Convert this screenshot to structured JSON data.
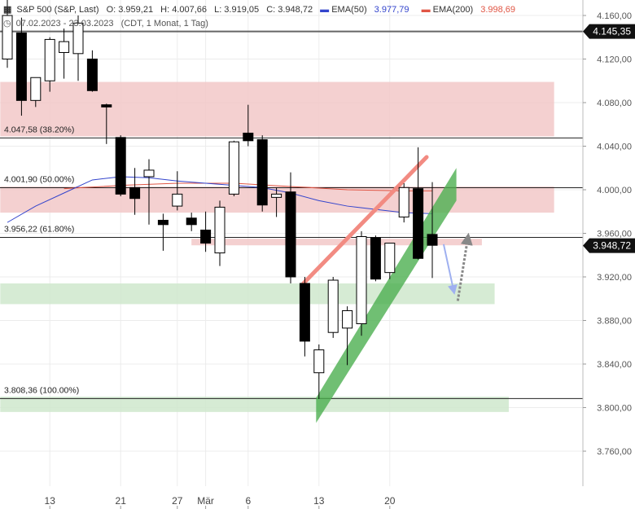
{
  "header": {
    "symbol": "S&P 500 (S&P, Last)",
    "open": "O: 3.959,21",
    "high": "H: 4.007,66",
    "low": "L: 3.919,05",
    "close": "C: 3.948,72",
    "ema50_label": "EMA(50)",
    "ema50_value": "3.977,79",
    "ema200_label": "EMA(200)",
    "ema200_value": "3.998,69",
    "date_range": "07.02.2023 - 23.03.2023",
    "settings": "(CDT, 1 Monat, 1 Tag)"
  },
  "colors": {
    "ema50": "#3344cc",
    "ema200": "#e05544",
    "resistance_zone": "#f2c8c8",
    "support_zone": "#cfe8cc",
    "channel": "#4caf50",
    "trend_up": "#f28b82"
  },
  "chart_data": {
    "type": "candlestick",
    "y_range": [
      3720,
      4180
    ],
    "y_ticks": [
      {
        "v": 4160,
        "label": "4.160,00"
      },
      {
        "v": 4120,
        "label": "4.120,00"
      },
      {
        "v": 4080,
        "label": "4.080,00"
      },
      {
        "v": 4040,
        "label": "4.040,00"
      },
      {
        "v": 4000,
        "label": "4.000,00"
      },
      {
        "v": 3960,
        "label": "3.960,00"
      },
      {
        "v": 3920,
        "label": "3.920,00"
      },
      {
        "v": 3880,
        "label": "3.880,00"
      },
      {
        "v": 3840,
        "label": "3.840,00"
      },
      {
        "v": 3800,
        "label": "3.800,00"
      },
      {
        "v": 3760,
        "label": "3.760,00"
      }
    ],
    "x_labels": [
      {
        "i": 3,
        "label": "13"
      },
      {
        "i": 8,
        "label": "21"
      },
      {
        "i": 12,
        "label": "27"
      },
      {
        "i": 14,
        "label": "Mär"
      },
      {
        "i": 17,
        "label": "6"
      },
      {
        "i": 22,
        "label": "13"
      },
      {
        "i": 27,
        "label": "20"
      }
    ],
    "candles": [
      {
        "o": 4120,
        "h": 4178,
        "l": 4112,
        "c": 4160
      },
      {
        "o": 4144,
        "h": 4158,
        "l": 4068,
        "c": 4082
      },
      {
        "o": 4082,
        "h": 4102,
        "l": 4076,
        "c": 4103
      },
      {
        "o": 4100,
        "h": 4140,
        "l": 4090,
        "c": 4138
      },
      {
        "o": 4126,
        "h": 4148,
        "l": 4102,
        "c": 4136
      },
      {
        "o": 4125,
        "h": 4160,
        "l": 4100,
        "c": 4153
      },
      {
        "o": 4120,
        "h": 4128,
        "l": 4090,
        "c": 4091
      },
      {
        "o": 4078,
        "h": 4079,
        "l": 4042,
        "c": 4076
      },
      {
        "o": 4048,
        "h": 4050,
        "l": 3994,
        "c": 3996
      },
      {
        "o": 4002,
        "h": 4020,
        "l": 3977,
        "c": 3992
      },
      {
        "o": 4012,
        "h": 4028,
        "l": 3968,
        "c": 4018
      },
      {
        "o": 3972,
        "h": 3978,
        "l": 3944,
        "c": 3968
      },
      {
        "o": 3985,
        "h": 4017,
        "l": 3981,
        "c": 3996
      },
      {
        "o": 3974,
        "h": 3979,
        "l": 3962,
        "c": 3968
      },
      {
        "o": 3963,
        "h": 3980,
        "l": 3943,
        "c": 3951
      },
      {
        "o": 3942,
        "h": 3990,
        "l": 3930,
        "c": 3984
      },
      {
        "o": 3996,
        "h": 4045,
        "l": 3994,
        "c": 4044
      },
      {
        "o": 4052,
        "h": 4078,
        "l": 4040,
        "c": 4045
      },
      {
        "o": 4046,
        "h": 4050,
        "l": 3980,
        "c": 3986
      },
      {
        "o": 3993,
        "h": 4002,
        "l": 3975,
        "c": 3996
      },
      {
        "o": 3998,
        "h": 4016,
        "l": 3914,
        "c": 3920
      },
      {
        "o": 3914,
        "h": 3920,
        "l": 3847,
        "c": 3861
      },
      {
        "o": 3832,
        "h": 3858,
        "l": 3808,
        "c": 3853
      },
      {
        "o": 3869,
        "h": 3920,
        "l": 3864,
        "c": 3917
      },
      {
        "o": 3873,
        "h": 3893,
        "l": 3839,
        "c": 3889
      },
      {
        "o": 3877,
        "h": 3962,
        "l": 3866,
        "c": 3957
      },
      {
        "o": 3956,
        "h": 3958,
        "l": 3916,
        "c": 3918
      },
      {
        "o": 3924,
        "h": 3948,
        "l": 3918,
        "c": 3951
      },
      {
        "o": 3975,
        "h": 4006,
        "l": 3970,
        "c": 4002
      },
      {
        "o": 4001,
        "h": 4039,
        "l": 3936,
        "c": 3937
      },
      {
        "o": 3959,
        "h": 4007,
        "l": 3919,
        "c": 3949
      }
    ],
    "ema50": [
      [
        0,
        3970
      ],
      [
        2,
        3985
      ],
      [
        4,
        3997
      ],
      [
        6,
        4009
      ],
      [
        8,
        4012
      ],
      [
        10,
        4011
      ],
      [
        12,
        4008
      ],
      [
        14,
        4006
      ],
      [
        16,
        4004
      ],
      [
        18,
        4002
      ],
      [
        20,
        3997
      ],
      [
        22,
        3990
      ],
      [
        24,
        3985
      ],
      [
        26,
        3982
      ],
      [
        28,
        3979
      ],
      [
        30,
        3978
      ]
    ],
    "ema200": [
      [
        4,
        4001
      ],
      [
        8,
        4004
      ],
      [
        12,
        4006
      ],
      [
        16,
        4006
      ],
      [
        20,
        4003
      ],
      [
        24,
        4000
      ],
      [
        28,
        3999
      ],
      [
        30,
        3999
      ]
    ],
    "fibonacci": [
      {
        "v": 4047.58,
        "label": "4.047,58 (38.20%)"
      },
      {
        "v": 4001.9,
        "label": "4.001,90 (50.00%)"
      },
      {
        "v": 3956.22,
        "label": "3.956,22 (61.80%)"
      },
      {
        "v": 3808.36,
        "label": "3.808,36 (100.00%)"
      }
    ],
    "reference_line": {
      "v": 4145.35,
      "label": "4.145,35"
    },
    "last_price": {
      "v": 3948.72,
      "label": "3.948,72"
    },
    "zones": [
      {
        "kind": "resistance",
        "from_i": -0.5,
        "to_i": 38.6,
        "top": 4099,
        "bottom": 4049
      },
      {
        "kind": "resistance",
        "from_i": -0.5,
        "to_i": 38.6,
        "top": 4003,
        "bottom": 3979
      },
      {
        "kind": "resistance",
        "from_i": 13.0,
        "to_i": 33.5,
        "top": 3955,
        "bottom": 3949
      },
      {
        "kind": "support",
        "from_i": -0.5,
        "to_i": 34.4,
        "top": 3914,
        "bottom": 3895
      },
      {
        "kind": "support",
        "from_i": -0.5,
        "to_i": 35.4,
        "top": 3810,
        "bottom": 3796
      }
    ],
    "channel": {
      "bottom_start": [
        21.8,
        3786
      ],
      "bottom_end": [
        31.7,
        3990
      ],
      "top_start": [
        21.8,
        3809
      ],
      "top_end": [
        31.7,
        4020
      ]
    },
    "trend_line": {
      "start": [
        20.9,
        3914
      ],
      "end": [
        29.6,
        4030
      ]
    },
    "arrows": [
      {
        "kind": "projection-down",
        "from": [
          30.8,
          3950
        ],
        "to": [
          31.5,
          3908
        ]
      },
      {
        "kind": "projection-up",
        "from": [
          31.8,
          3898
        ],
        "to": [
          32.5,
          3955
        ]
      }
    ]
  }
}
